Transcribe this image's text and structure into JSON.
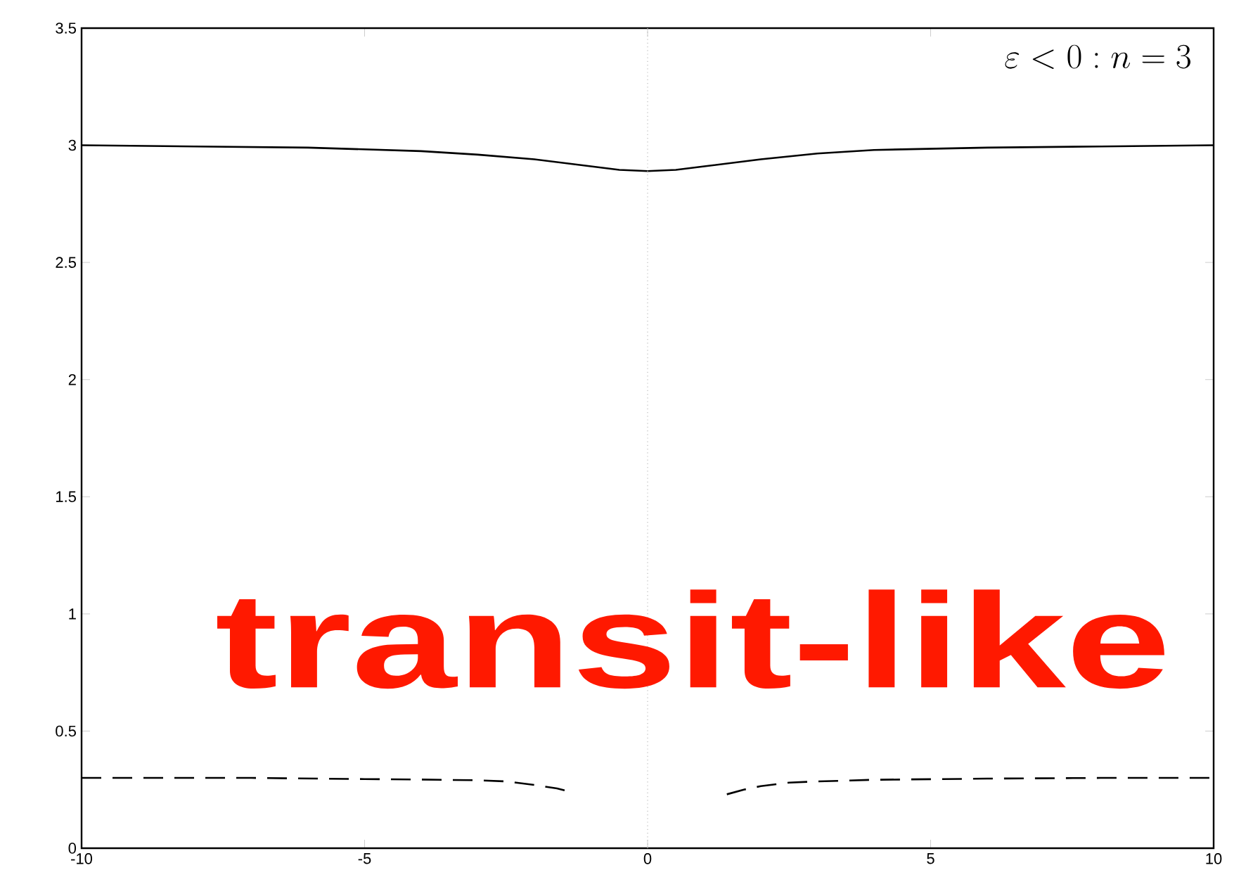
{
  "chart_data": {
    "type": "line",
    "xlim": [
      -10,
      10
    ],
    "ylim": [
      0,
      3.5
    ],
    "xticks": [
      -10,
      -5,
      0,
      5,
      10
    ],
    "yticks": [
      0,
      0.5,
      1,
      1.5,
      2,
      2.5,
      3,
      3.5
    ],
    "marker": "none",
    "series": [
      {
        "color": "#000000",
        "line_style": "solid",
        "x": [
          -10,
          -8,
          -6,
          -4,
          -3,
          -2,
          -1,
          -0.5,
          0,
          0.5,
          1,
          2,
          3,
          4,
          6,
          8,
          10
        ],
        "values": [
          3.0,
          2.995,
          2.99,
          2.975,
          2.96,
          2.94,
          2.91,
          2.895,
          2.89,
          2.895,
          2.91,
          2.94,
          2.965,
          2.98,
          2.99,
          2.995,
          3.0
        ]
      },
      {
        "color": "#000000",
        "line_style": "dashed",
        "x": [
          -10,
          -7,
          -5,
          -4,
          -3,
          -2.5,
          -2,
          -1.6,
          -1.35,
          null,
          1.4,
          1.7,
          2,
          2.5,
          3,
          4,
          6,
          8,
          10
        ],
        "values": [
          0.3,
          0.3,
          0.295,
          0.293,
          0.29,
          0.285,
          0.27,
          0.255,
          0.24,
          null,
          0.23,
          0.25,
          0.265,
          0.28,
          0.285,
          0.292,
          0.297,
          0.3,
          0.3
        ]
      }
    ],
    "ref_lines": [
      {
        "axis": "x",
        "value": 0,
        "color": "#bbbbbb",
        "line_style": "dotted"
      }
    ],
    "annotations": [
      "\\varepsilon < 0 : n = 3",
      "transit-like"
    ]
  }
}
